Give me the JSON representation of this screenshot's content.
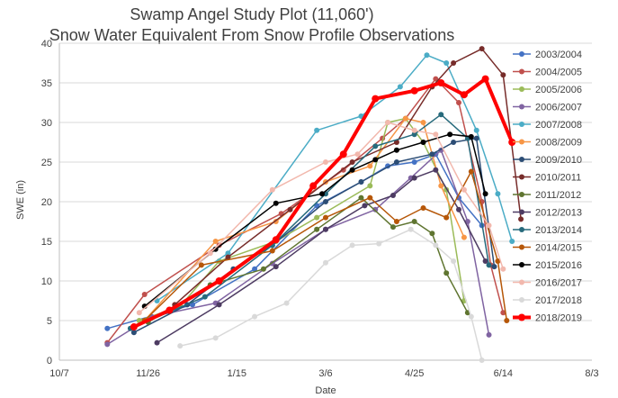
{
  "chart_data": {
    "type": "line",
    "title": "Swamp Angel Study Plot (11,060')",
    "subtitle": "Snow Water Equivalent From Snow Profile Observations",
    "xlabel": "Date",
    "ylabel": "SWE (in)",
    "ylim": [
      0,
      40
    ],
    "yticks": [
      0,
      5,
      10,
      15,
      20,
      25,
      30,
      35,
      40
    ],
    "xticks": [
      {
        "doy": 0,
        "label": "10/7"
      },
      {
        "doy": 50,
        "label": "11/26"
      },
      {
        "doy": 100,
        "label": "1/15"
      },
      {
        "doy": 150,
        "label": "3/6"
      },
      {
        "doy": 200,
        "label": "4/25"
      },
      {
        "doy": 250,
        "label": "6/14"
      },
      {
        "doy": 300,
        "label": "8/3"
      }
    ],
    "xlim": [
      0,
      300
    ],
    "grid": "horizontal",
    "legend_position": "right",
    "series": [
      {
        "name": "2003/2004",
        "color": "#4472c4",
        "width": 1.5,
        "points": [
          [
            27,
            4.0
          ],
          [
            75,
            7.0
          ],
          [
            110,
            11.5
          ],
          [
            145,
            19.5
          ],
          [
            170,
            22.5
          ],
          [
            185,
            24.5
          ],
          [
            200,
            25.0
          ],
          [
            212,
            26.0
          ],
          [
            225,
            20.5
          ],
          [
            238,
            17.0
          ]
        ]
      },
      {
        "name": "2004/2005",
        "color": "#c0504d",
        "width": 1.5,
        "points": [
          [
            27,
            2.2
          ],
          [
            48,
            8.3
          ],
          [
            90,
            14.5
          ],
          [
            125,
            18.5
          ],
          [
            160,
            24.0
          ],
          [
            182,
            28.0
          ],
          [
            195,
            30.5
          ],
          [
            212,
            35.5
          ],
          [
            225,
            32.5
          ],
          [
            238,
            20.0
          ],
          [
            243,
            12.0
          ],
          [
            250,
            6.0
          ]
        ]
      },
      {
        "name": "2005/2006",
        "color": "#9bbb59",
        "width": 1.5,
        "points": [
          [
            45,
            5.0
          ],
          [
            68,
            6.8
          ],
          [
            90,
            12.5
          ],
          [
            122,
            15.0
          ],
          [
            145,
            18.0
          ],
          [
            175,
            22.0
          ],
          [
            185,
            30.0
          ],
          [
            195,
            30.5
          ],
          [
            205,
            27.5
          ],
          [
            218,
            21.5
          ],
          [
            228,
            7.5
          ]
        ]
      },
      {
        "name": "2006/2007",
        "color": "#8064a2",
        "width": 1.5,
        "points": [
          [
            27,
            2.0
          ],
          [
            52,
            5.5
          ],
          [
            88,
            7.2
          ],
          [
            120,
            12.2
          ],
          [
            150,
            16.5
          ],
          [
            178,
            19.0
          ],
          [
            198,
            23.0
          ],
          [
            215,
            26.5
          ],
          [
            230,
            17.5
          ],
          [
            242,
            3.2
          ]
        ]
      },
      {
        "name": "2007/2008",
        "color": "#4bacc6",
        "width": 1.5,
        "points": [
          [
            55,
            7.5
          ],
          [
            95,
            13.5
          ],
          [
            145,
            29.0
          ],
          [
            170,
            30.8
          ],
          [
            192,
            34.5
          ],
          [
            207,
            38.5
          ],
          [
            218,
            37.5
          ],
          [
            235,
            29.0
          ],
          [
            247,
            21.0
          ],
          [
            255,
            15.0
          ]
        ]
      },
      {
        "name": "2008/2009",
        "color": "#f79646",
        "width": 1.5,
        "points": [
          [
            48,
            5.0
          ],
          [
            88,
            15.0
          ],
          [
            122,
            17.5
          ],
          [
            150,
            22.5
          ],
          [
            175,
            24.5
          ],
          [
            195,
            30.5
          ],
          [
            205,
            30.0
          ],
          [
            215,
            22.0
          ],
          [
            228,
            15.5
          ]
        ]
      },
      {
        "name": "2009/2010",
        "color": "#2c4d75",
        "width": 1.5,
        "points": [
          [
            42,
            3.5
          ],
          [
            72,
            7.0
          ],
          [
            98,
            11.5
          ],
          [
            120,
            14.5
          ],
          [
            150,
            20.0
          ],
          [
            170,
            22.5
          ],
          [
            190,
            25.0
          ],
          [
            210,
            26.0
          ],
          [
            222,
            27.5
          ],
          [
            235,
            28.0
          ],
          [
            245,
            11.8
          ]
        ]
      },
      {
        "name": "2010/2011",
        "color": "#772c2a",
        "width": 1.5,
        "points": [
          [
            65,
            7.0
          ],
          [
            95,
            13.0
          ],
          [
            130,
            19.0
          ],
          [
            165,
            25.0
          ],
          [
            190,
            27.5
          ],
          [
            210,
            34.5
          ],
          [
            222,
            37.5
          ],
          [
            238,
            39.3
          ],
          [
            250,
            36.0
          ],
          [
            260,
            17.8
          ]
        ]
      },
      {
        "name": "2011/2012",
        "color": "#5f7530",
        "width": 1.5,
        "points": [
          [
            50,
            4.8
          ],
          [
            85,
            9.5
          ],
          [
            115,
            11.5
          ],
          [
            145,
            16.5
          ],
          [
            170,
            20.5
          ],
          [
            188,
            16.8
          ],
          [
            200,
            17.5
          ],
          [
            210,
            16.0
          ],
          [
            218,
            11.0
          ],
          [
            230,
            6.0
          ]
        ]
      },
      {
        "name": "2012/2013",
        "color": "#4d3b62",
        "width": 1.5,
        "points": [
          [
            55,
            2.2
          ],
          [
            90,
            7.0
          ],
          [
            122,
            11.8
          ],
          [
            150,
            16.5
          ],
          [
            172,
            19.5
          ],
          [
            188,
            20.8
          ],
          [
            200,
            23.0
          ],
          [
            212,
            24.0
          ],
          [
            225,
            19.0
          ],
          [
            240,
            12.5
          ]
        ]
      },
      {
        "name": "2013/2014",
        "color": "#276a7c",
        "width": 1.5,
        "points": [
          [
            40,
            4.0
          ],
          [
            82,
            8.0
          ],
          [
            120,
            14.5
          ],
          [
            150,
            21.0
          ],
          [
            178,
            27.0
          ],
          [
            200,
            28.5
          ],
          [
            215,
            31.0
          ],
          [
            230,
            28.0
          ],
          [
            242,
            12.0
          ]
        ]
      },
      {
        "name": "2014/2015",
        "color": "#b65708",
        "width": 1.5,
        "points": [
          [
            48,
            5.0
          ],
          [
            80,
            12.0
          ],
          [
            120,
            13.8
          ],
          [
            150,
            18.0
          ],
          [
            175,
            20.5
          ],
          [
            190,
            17.5
          ],
          [
            205,
            19.2
          ],
          [
            218,
            18.0
          ],
          [
            232,
            23.8
          ],
          [
            247,
            12.5
          ],
          [
            252,
            5.0
          ]
        ]
      },
      {
        "name": "2015/2016",
        "color": "#000000",
        "width": 1.5,
        "points": [
          [
            48,
            6.8
          ],
          [
            88,
            14.0
          ],
          [
            122,
            19.8
          ],
          [
            148,
            21.0
          ],
          [
            165,
            24.0
          ],
          [
            178,
            25.3
          ],
          [
            190,
            26.5
          ],
          [
            205,
            27.5
          ],
          [
            220,
            28.5
          ],
          [
            232,
            28.2
          ],
          [
            240,
            21.0
          ]
        ]
      },
      {
        "name": "2016/2017",
        "color": "#f2b8ad",
        "width": 1.5,
        "points": [
          [
            45,
            6.0
          ],
          [
            85,
            13.5
          ],
          [
            120,
            21.5
          ],
          [
            150,
            25.0
          ],
          [
            168,
            26.0
          ],
          [
            185,
            30.0
          ],
          [
            200,
            29.0
          ],
          [
            212,
            28.5
          ],
          [
            228,
            21.5
          ],
          [
            242,
            17.0
          ],
          [
            250,
            11.5
          ]
        ]
      },
      {
        "name": "2017/2018",
        "color": "#d9d9d9",
        "width": 1.5,
        "points": [
          [
            68,
            1.8
          ],
          [
            88,
            2.8
          ],
          [
            110,
            5.5
          ],
          [
            128,
            7.2
          ],
          [
            150,
            12.3
          ],
          [
            165,
            14.5
          ],
          [
            180,
            14.7
          ],
          [
            198,
            16.5
          ],
          [
            212,
            14.5
          ],
          [
            222,
            12.5
          ],
          [
            232,
            5.5
          ],
          [
            238,
            0.0
          ]
        ]
      },
      {
        "name": "2018/2019",
        "color": "#ff0000",
        "width": 4,
        "points": [
          [
            42,
            4.2
          ],
          [
            62,
            6.3
          ],
          [
            90,
            10.0
          ],
          [
            122,
            15.2
          ],
          [
            143,
            22.0
          ],
          [
            160,
            26.0
          ],
          [
            178,
            33.0
          ],
          [
            200,
            34.0
          ],
          [
            215,
            35.0
          ],
          [
            228,
            33.5
          ],
          [
            240,
            35.5
          ],
          [
            255,
            27.5
          ]
        ]
      }
    ]
  }
}
